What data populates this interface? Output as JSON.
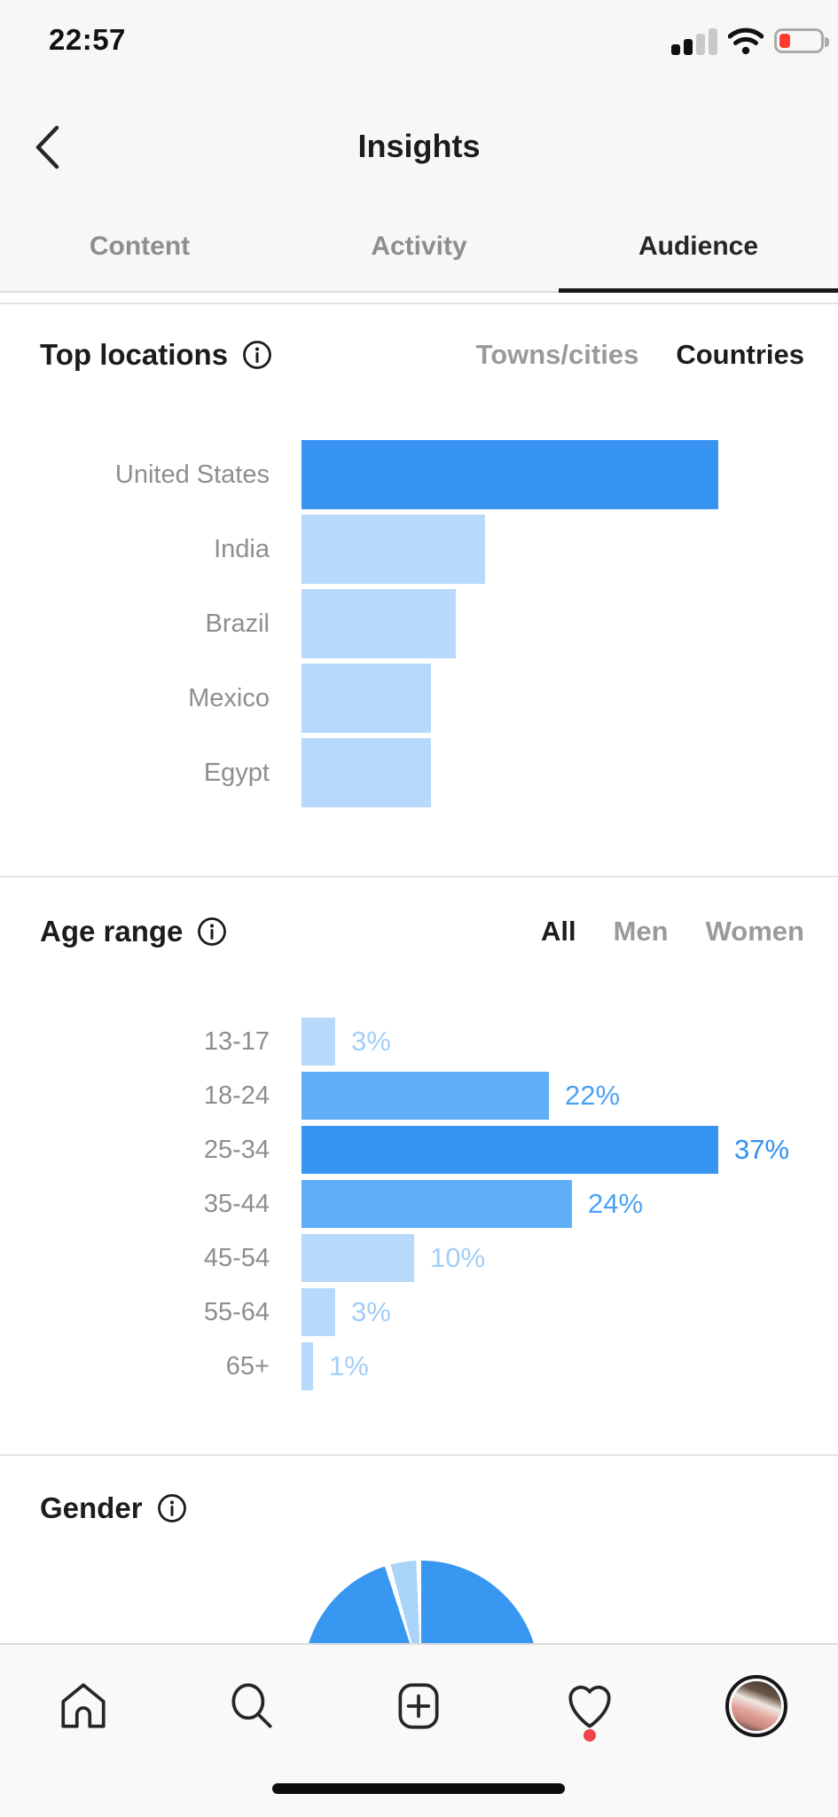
{
  "status_bar": {
    "time": "22:57",
    "battery_state": "low",
    "battery_color": "#ff3b30",
    "signal_bars_filled": 2,
    "signal_bars_total": 4
  },
  "header": {
    "title": "Insights"
  },
  "top_tabs": [
    {
      "label": "Content",
      "active": false
    },
    {
      "label": "Activity",
      "active": false
    },
    {
      "label": "Audience",
      "active": true
    }
  ],
  "sections": {
    "top_locations": {
      "title": "Top locations",
      "toggles": [
        {
          "label": "Towns/cities",
          "active": false
        },
        {
          "label": "Countries",
          "active": true
        }
      ]
    },
    "age_range": {
      "title": "Age range",
      "toggles": [
        {
          "label": "All",
          "active": true
        },
        {
          "label": "Men",
          "active": false
        },
        {
          "label": "Women",
          "active": false
        }
      ]
    },
    "gender": {
      "title": "Gender"
    }
  },
  "chart_data": [
    {
      "id": "top_locations_chart",
      "type": "bar",
      "orientation": "horizontal",
      "title": "Top locations (Countries)",
      "categories": [
        "United States",
        "India",
        "Brazil",
        "Mexico",
        "Egypt"
      ],
      "values_relative_to_max": [
        1.0,
        0.44,
        0.37,
        0.31,
        0.31
      ],
      "value_labels": null,
      "shades": [
        "dark",
        "light",
        "light",
        "light",
        "light"
      ],
      "grid": false,
      "legend": false
    },
    {
      "id": "age_range_chart",
      "type": "bar",
      "orientation": "horizontal",
      "title": "Age range (All)",
      "categories": [
        "13-17",
        "18-24",
        "25-34",
        "35-44",
        "45-54",
        "55-64",
        "65+"
      ],
      "values": [
        3,
        22,
        37,
        24,
        10,
        3,
        1
      ],
      "unit": "%",
      "value_labels": [
        "3%",
        "22%",
        "37%",
        "24%",
        "10%",
        "3%",
        "1%"
      ],
      "shades": [
        "light",
        "medium",
        "dark",
        "medium",
        "light",
        "light",
        "light"
      ],
      "xlim": [
        0,
        40
      ],
      "grid": false,
      "legend": false
    },
    {
      "id": "gender_chart",
      "type": "pie",
      "title": "Gender",
      "segments": [
        {
          "label": "segment-primary",
          "approx_percent": 96,
          "shade": "dark"
        },
        {
          "label": "segment-secondary",
          "approx_percent": 4,
          "shade": "light"
        }
      ],
      "note": "only top half of pie visible; cut off by bottom navigation"
    }
  ],
  "colors": {
    "accent_dark_blue": "#3794f0",
    "accent_medium_blue": "#60aef8",
    "accent_light_blue": "#b7d9fb",
    "pie_blue": "#3897f0",
    "pie_light_blue": "#a9d3f9",
    "notification_red": "#f0434b",
    "battery_red": "#ff3b30"
  },
  "bottom_nav": {
    "items": [
      "home",
      "search",
      "new-post",
      "activity-heart",
      "profile"
    ],
    "active_item": "profile",
    "heart_badge": true
  }
}
